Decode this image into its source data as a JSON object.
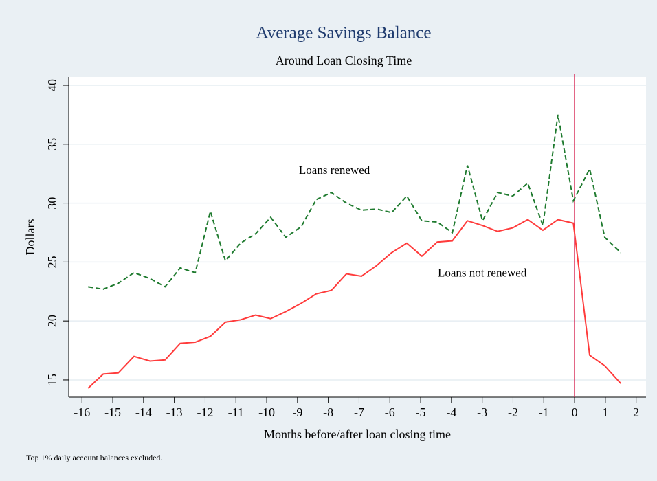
{
  "chart_data": {
    "type": "line",
    "title": "Average Savings Balance",
    "subtitle": "Around Loan Closing Time",
    "x_label": "Months before/after loan closing time",
    "y_label": "Dollars",
    "note": "Top 1% daily account balances excluded.",
    "annotations": [
      {
        "text": "Loans renewed",
        "x": -7.8,
        "y": 32.7
      },
      {
        "text": "Loans not renewed",
        "x": -3.0,
        "y": 24.0
      }
    ],
    "vline": {
      "x": 0,
      "color": "#d62050"
    },
    "xlim": [
      -16.43,
      2.32
    ],
    "ylim": [
      13.54,
      40.7
    ],
    "xticks": [
      -16,
      -15,
      -14,
      -13,
      -12,
      -11,
      -10,
      -9,
      -8,
      -7,
      -6,
      -5,
      -4,
      -3,
      -2,
      -1,
      0,
      1,
      2
    ],
    "yticks": [
      15,
      20,
      25,
      30,
      35,
      40
    ],
    "grid": true,
    "x": [
      -15.8,
      -15.31,
      -14.82,
      -14.31,
      -13.79,
      -13.3,
      -12.81,
      -12.32,
      -11.83,
      -11.34,
      -10.85,
      -10.36,
      -9.87,
      -9.38,
      -8.88,
      -8.39,
      -7.9,
      -7.41,
      -6.92,
      -6.43,
      -5.94,
      -5.45,
      -4.96,
      -4.46,
      -3.97,
      -3.48,
      -2.99,
      -2.5,
      -2.01,
      -1.52,
      -1.03,
      -0.54,
      -0.04,
      0.49,
      0.98,
      1.5
    ],
    "series": [
      {
        "name": "Loans renewed",
        "color": "#1e7a2e",
        "dash": true,
        "values": [
          22.9,
          22.7,
          23.2,
          24.1,
          23.6,
          22.9,
          24.5,
          24.1,
          29.3,
          25.1,
          26.6,
          27.4,
          28.8,
          27.1,
          28.0,
          30.3,
          30.9,
          30.0,
          29.4,
          29.5,
          29.2,
          30.6,
          28.5,
          28.4,
          27.5,
          33.2,
          28.5,
          30.9,
          30.6,
          31.7,
          28.1,
          37.5,
          30.2,
          32.9,
          27.1,
          25.8
        ]
      },
      {
        "name": "Loans not renewed",
        "color": "#ff3b3b",
        "dash": false,
        "values": [
          14.3,
          15.5,
          15.6,
          17.0,
          16.6,
          16.7,
          18.1,
          18.2,
          18.7,
          19.9,
          20.1,
          20.5,
          20.2,
          20.8,
          21.5,
          22.3,
          22.6,
          24.0,
          23.8,
          24.7,
          25.8,
          26.6,
          25.5,
          26.7,
          26.8,
          28.5,
          28.1,
          27.6,
          27.9,
          28.6,
          27.7,
          28.6,
          28.3,
          17.1,
          16.2,
          14.7
        ]
      }
    ]
  }
}
